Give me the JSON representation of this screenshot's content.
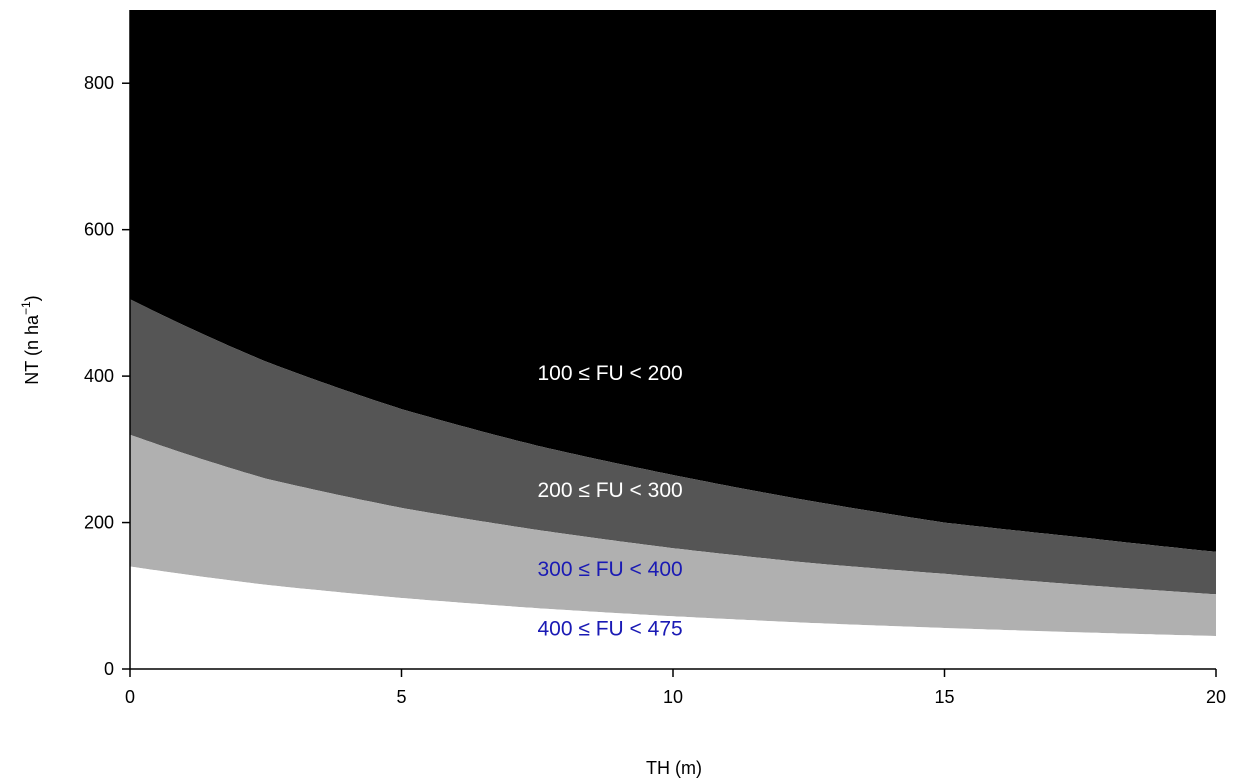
{
  "chart_data": {
    "type": "area",
    "xlabel": "TH (m)",
    "ylabel": {
      "main": "NT (n ha",
      "sup": "−1",
      "close": ")"
    },
    "xlim": [
      0,
      20
    ],
    "ylim": [
      0,
      900
    ],
    "xticks": [
      "0",
      "5",
      "10",
      "15",
      "20"
    ],
    "yticks": [
      "0",
      "200",
      "400",
      "600",
      "800"
    ],
    "grid": false,
    "boundaries": {
      "x": [
        0,
        2.5,
        5,
        7.5,
        10,
        12.5,
        15,
        17.5,
        20
      ],
      "upper_200": [
        505,
        420,
        355,
        305,
        265,
        230,
        200,
        180,
        160
      ],
      "upper_300": [
        320,
        260,
        220,
        190,
        165,
        145,
        130,
        115,
        102
      ],
      "upper_400": [
        140,
        115,
        97,
        83,
        72,
        63,
        56,
        50,
        45
      ]
    },
    "regions": [
      {
        "name": "100 ≤ FU < 200",
        "color": "#000000",
        "label_color": "#ffffff",
        "label_x": 7,
        "label_y": 395
      },
      {
        "name": "200 ≤ FU < 300",
        "color": "#555555",
        "label_color": "#ffffff",
        "label_x": 7,
        "label_y": 235
      },
      {
        "name": "300 ≤ FU < 400",
        "color": "#b0b0b0",
        "label_color": "#1a1ab4",
        "label_x": 7,
        "label_y": 127
      },
      {
        "name": "400 ≤ FU < 475",
        "color": "#ffffff",
        "label_color": "#1a1ab4",
        "label_x": 7,
        "label_y": 46
      }
    ]
  }
}
